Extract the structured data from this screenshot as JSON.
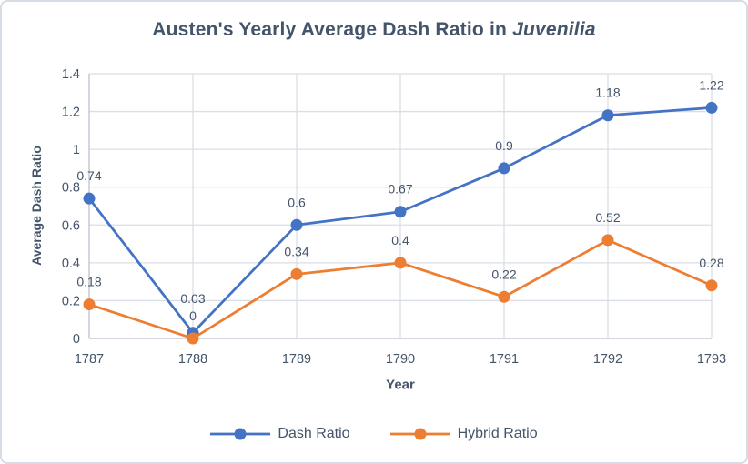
{
  "title": {
    "text_before_italic": "Austen's Yearly Average Dash Ratio in ",
    "italic_part": "Juvenilia"
  },
  "chart_data": {
    "type": "line",
    "title": "Austen's Yearly Average Dash Ratio in Juvenilia",
    "title_italic_segment": "Juvenilia",
    "xlabel": "Year",
    "ylabel": "Average Dash Ratio",
    "categories": [
      "1787",
      "1788",
      "1789",
      "1790",
      "1791",
      "1792",
      "1793"
    ],
    "series": [
      {
        "name": "Dash Ratio",
        "color": "#4472C4",
        "values": [
          0.74,
          0.03,
          0.6,
          0.67,
          0.9,
          1.18,
          1.22
        ],
        "point_labels": [
          "0.74",
          "0.03",
          "0.6",
          "0.67",
          "0.9",
          "1.18",
          "1.22"
        ]
      },
      {
        "name": "Hybrid Ratio",
        "color": "#ED7D31",
        "values": [
          0.18,
          0,
          0.34,
          0.4,
          0.22,
          0.52,
          0.28
        ],
        "point_labels": [
          "0.18",
          "0",
          "0.34",
          "0.4",
          "0.22",
          "0.52",
          "0.28"
        ]
      }
    ],
    "ylim": [
      0,
      1.4
    ],
    "yticks": [
      0,
      0.2,
      0.4,
      0.6,
      0.8,
      1,
      1.2,
      1.4
    ],
    "ytick_labels": [
      "0",
      "0.2",
      "0.4",
      "0.6",
      "0.8",
      "1",
      "1.2",
      "1.4"
    ],
    "grid": true,
    "marker": "circle",
    "legend_position": "bottom"
  },
  "colors": {
    "text": "#44546A",
    "series_blue": "#4472C4",
    "series_orange": "#ED7D31",
    "gridline": "#DADEE6",
    "axis_line": "#C3CAD5",
    "figure_border": "#D7DDE5",
    "background": "#FFFFFF"
  }
}
